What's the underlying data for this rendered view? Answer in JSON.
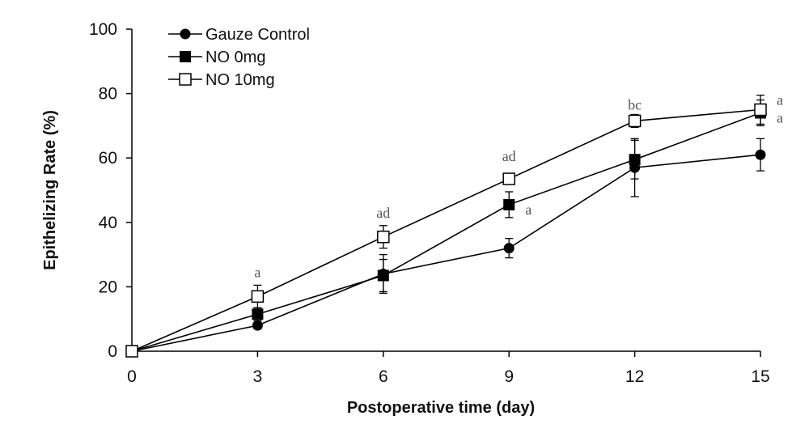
{
  "chart_data": {
    "type": "line",
    "xlabel": "Postoperative time (day)",
    "ylabel": "Epithelizing Rate (%)",
    "x": [
      0,
      3,
      6,
      9,
      12,
      15
    ],
    "xticks": [
      "0",
      "3",
      "6",
      "9",
      "12",
      "15"
    ],
    "yticks": [
      "0",
      "20",
      "40",
      "60",
      "80",
      "100"
    ],
    "xlim": [
      0,
      15
    ],
    "ylim": [
      0,
      100
    ],
    "grid": false,
    "legend_position": "top-left",
    "series": [
      {
        "name": "Gauze Control",
        "marker": "filled-circle",
        "values": [
          0,
          8,
          24,
          32,
          57,
          61
        ],
        "errors": [
          0,
          1,
          6,
          3,
          9,
          5
        ]
      },
      {
        "name": "NO 0mg",
        "marker": "filled-square",
        "values": [
          0,
          11.5,
          23.5,
          45.5,
          59.5,
          74
        ],
        "errors": [
          0,
          2,
          5,
          4,
          6,
          4
        ]
      },
      {
        "name": "NO 10mg",
        "marker": "open-square",
        "values": [
          0,
          17,
          35.5,
          53.5,
          71.5,
          75
        ],
        "errors": [
          0,
          3.5,
          3.5,
          1,
          2,
          4.5
        ]
      }
    ],
    "annotations": [
      {
        "text": "a",
        "x": 3,
        "y": 24.5
      },
      {
        "text": "ad",
        "x": 6,
        "y": 43
      },
      {
        "text": "ad",
        "x": 9,
        "y": 60.5
      },
      {
        "text": "a",
        "x": 9,
        "y": 44,
        "side": "right"
      },
      {
        "text": "bc",
        "x": 12,
        "y": 76.5
      },
      {
        "text": "a",
        "x": 15,
        "y": 78,
        "side": "right"
      },
      {
        "text": "a",
        "x": 15,
        "y": 72.5,
        "side": "right"
      }
    ]
  }
}
